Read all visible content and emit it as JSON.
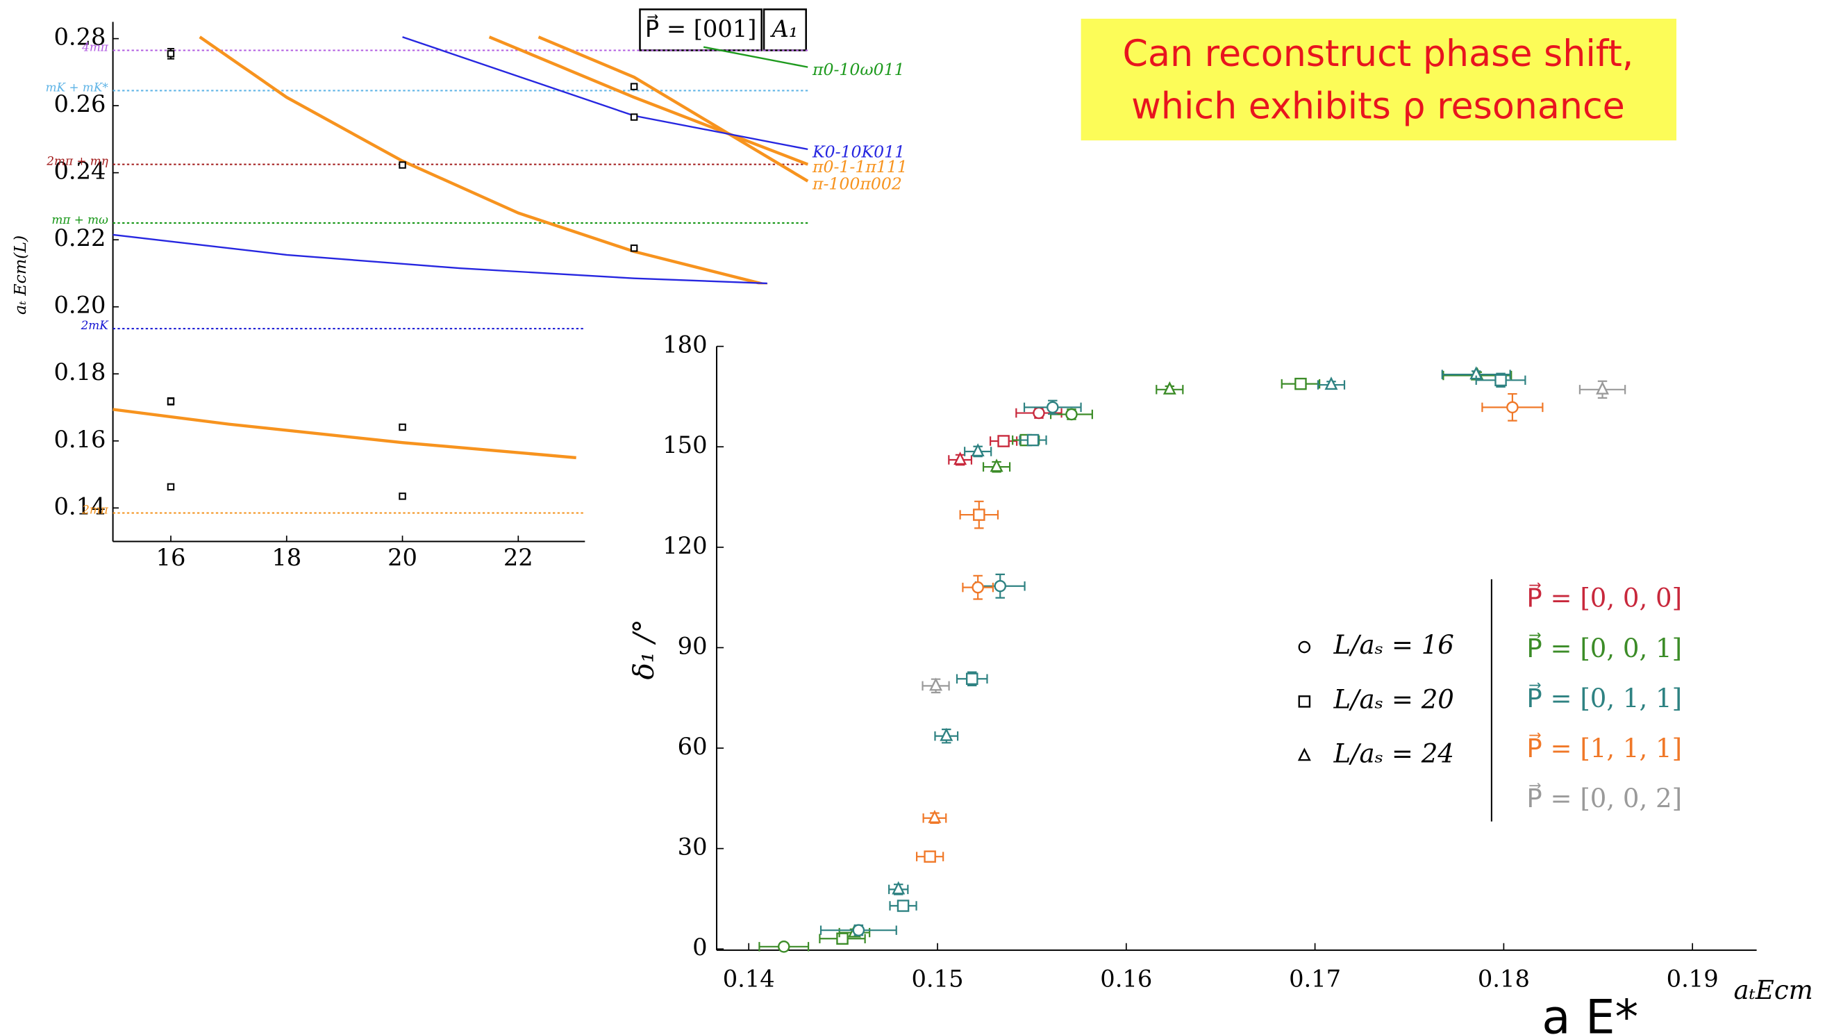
{
  "chart_data": [
    {
      "type": "line",
      "title": "P⃗ = [001]",
      "subtitle": "A₁",
      "ylabel": "aₜ Ecm(L)",
      "xlim": [
        15,
        27
      ],
      "xticks": [
        16,
        18,
        20,
        22
      ],
      "ylim": [
        0.13,
        0.285
      ],
      "yticks": [
        0.14,
        0.16,
        0.18,
        {
          "value": 0.2,
          "label": "0.20"
        },
        0.22,
        0.24,
        0.26,
        0.28
      ],
      "thresholds": [
        {
          "label": "4mπ",
          "value": 0.2765,
          "color": "#b05be0"
        },
        {
          "label": "mK + mK*",
          "value": 0.2645,
          "color": "#5fb4e6"
        },
        {
          "label": "2mπ + mη",
          "value": 0.2425,
          "color": "#a01818"
        },
        {
          "label": "mπ + mω",
          "value": 0.225,
          "color": "#159615"
        },
        {
          "label": "2mK",
          "value": 0.1935,
          "color": "#1414d2"
        },
        {
          "label": "2mπ",
          "value": 0.1385,
          "color": "#f39019"
        }
      ],
      "series": [
        {
          "color": "#f7931e",
          "x": [
            16.5,
            18,
            20,
            22,
            24,
            26.3
          ],
          "values": [
            0.2805,
            0.2625,
            0.2435,
            0.228,
            0.2165,
            0.2065
          ]
        },
        {
          "color": "#f7931e",
          "x": [
            15,
            17,
            20,
            23
          ],
          "values": [
            0.1694,
            0.165,
            0.1595,
            0.155
          ]
        },
        {
          "name": "π0-1-1π111",
          "color": "#f7931e",
          "x": [
            21.5,
            24,
            27
          ],
          "values": [
            0.2805,
            0.2625,
            0.2425
          ]
        },
        {
          "name": "π-100π002",
          "color": "#f7931e",
          "x": [
            22.35,
            24,
            27
          ],
          "values": [
            0.2805,
            0.2685,
            0.2375
          ]
        },
        {
          "name": "K0-10K011",
          "color": "#2626e0",
          "x": [
            20,
            24,
            27
          ],
          "values": [
            0.2805,
            0.257,
            0.247
          ]
        },
        {
          "color": "#2626e0",
          "x": [
            15,
            18,
            21,
            24,
            26.3
          ],
          "values": [
            0.2215,
            0.2155,
            0.2115,
            0.2085,
            0.207
          ]
        },
        {
          "name": "π0-10ω011",
          "color": "#1e9a1e",
          "x": [
            25.2,
            27
          ],
          "values": [
            0.2775,
            0.2715
          ]
        }
      ],
      "points": {
        "color": "#000000",
        "x": [
          16,
          16,
          16,
          20,
          20,
          20,
          24,
          24,
          24
        ],
        "values": [
          0.2755,
          0.1718,
          0.1463,
          0.2423,
          0.1641,
          0.1435,
          0.2657,
          0.2566,
          0.2175
        ],
        "errors": [
          0.0015,
          0.001,
          0.0007,
          0.0008,
          0.0006,
          0.0005,
          0.0005,
          0.0005,
          0.0005
        ]
      }
    },
    {
      "type": "scatter",
      "xlabel": "aₜEcm",
      "ylabel": "δ₁ /°",
      "xlim": [
        0.1383,
        0.1934
      ],
      "xticks": [
        0.14,
        0.15,
        0.16,
        0.17,
        0.18,
        0.19
      ],
      "ylim": [
        0,
        180
      ],
      "yticks": [
        0,
        30,
        60,
        90,
        120,
        150,
        180
      ],
      "marker_legend": [
        {
          "label": "L/aₛ = 16",
          "shape": "circle"
        },
        {
          "label": "L/aₛ = 20",
          "shape": "square"
        },
        {
          "label": "L/aₛ = 24",
          "shape": "triangle"
        }
      ],
      "series": [
        {
          "name": "P⃗ = [0, 0, 0]",
          "color": "#c8283c",
          "x": [
            0.1512,
            0.1535,
            0.15537
          ],
          "values": [
            146.1,
            151.7,
            160.1
          ],
          "xerr": [
            0.0006,
            0.0007,
            0.0012
          ],
          "yerr": [
            1.5,
            1.5,
            1.5
          ],
          "shapes": [
            "triangle",
            "square",
            "circle"
          ]
        },
        {
          "name": "P⃗ = [0, 0, 1]",
          "color": "#3c8c28",
          "x": [
            0.14186,
            0.14496,
            0.1456,
            0.15313,
            0.15468,
            0.1571,
            0.1623,
            0.16924,
            0.1786
          ],
          "values": [
            0.7,
            3.1,
            4.9,
            144.0,
            152.0,
            159.7,
            167.1,
            168.8,
            171.3
          ],
          "xerr": [
            0.0013,
            0.0012,
            0.0008,
            0.0007,
            0.0007,
            0.0011,
            0.0007,
            0.001,
            0.0018
          ],
          "yerr": [
            1,
            1,
            1,
            1.5,
            1.5,
            1.5,
            1,
            1,
            1
          ],
          "shapes": [
            "circle",
            "square",
            "triangle",
            "triangle",
            "square",
            "circle",
            "triangle",
            "square",
            "triangle"
          ]
        },
        {
          "name": "P⃗ = [0, 1, 1]",
          "color": "#2e8282",
          "x": [
            0.14582,
            0.14818,
            0.14793,
            0.15047,
            0.15183,
            0.15332,
            0.15214,
            0.15506,
            0.1561,
            0.17086,
            0.17854,
            0.17984
          ],
          "values": [
            5.6,
            12.9,
            17.8,
            63.6,
            80.7,
            108.4,
            148.6,
            152.0,
            161.8,
            168.5,
            171.6,
            169.9
          ],
          "xerr": [
            0.002,
            0.0007,
            0.0005,
            0.0006,
            0.0008,
            0.0013,
            0.0007,
            0.0007,
            0.0015,
            0.0007,
            0.0018,
            0.0013
          ],
          "yerr": [
            1.5,
            1.5,
            1.5,
            2,
            2,
            3.5,
            1.5,
            1.5,
            2,
            1,
            1,
            2
          ],
          "shapes": [
            "circle",
            "square",
            "triangle",
            "triangle",
            "square",
            "circle",
            "triangle",
            "square",
            "circle",
            "triangle",
            "triangle",
            "square"
          ]
        },
        {
          "name": "P⃗ = [1, 1, 1]",
          "color": "#f07828",
          "x": [
            0.14985,
            0.1496,
            0.15214,
            0.1522,
            0.18046
          ],
          "values": [
            39.1,
            27.6,
            108.0,
            129.7,
            161.8
          ],
          "xerr": [
            0.0006,
            0.0007,
            0.0008,
            0.001,
            0.0016
          ],
          "yerr": [
            1.5,
            1.5,
            3.5,
            4,
            4
          ],
          "shapes": [
            "triangle",
            "square",
            "circle",
            "square",
            "circle"
          ]
        },
        {
          "name": "P⃗ = [0, 0, 2]",
          "color": "#9a9a9a",
          "x": [
            0.14991,
            0.18523
          ],
          "values": [
            78.6,
            167.1
          ],
          "xerr": [
            0.0007,
            0.0012
          ],
          "yerr": [
            2,
            2.5
          ],
          "shapes": [
            "triangle",
            "triangle"
          ]
        }
      ]
    }
  ],
  "annotation": {
    "lines": [
      "Can reconstruct phase shift,",
      "which exhibits ρ resonance"
    ]
  },
  "label": "a E*"
}
